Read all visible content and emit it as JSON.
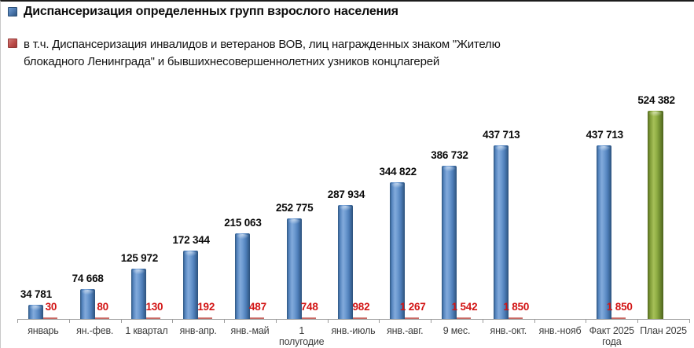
{
  "legend": {
    "series1": {
      "label": "Диспансеризация определенных групп взрослого населения",
      "marker_color": "#4F81BD"
    },
    "series2": {
      "lines": [
        "в т.ч. Диспансеризация инвалидов и ветеранов ВОВ, лиц награжденных знаком \"Жителю",
        "блокадного Ленинграда\" и бывшихнесовершеннолетних  узников концлагерей"
      ],
      "marker_color": "#C0504D"
    }
  },
  "chart_data": {
    "type": "bar",
    "title": "",
    "xlabel": "",
    "ylabel": "",
    "grid": false,
    "legend_position": "top-left",
    "ylim": [
      0,
      560000
    ],
    "categories": [
      "январь",
      "ян.-фев.",
      "1 квартал",
      "янв-апр.",
      "янв.-май",
      "1 полугодие",
      "янв.-июль",
      "янв.-авг.",
      "9 мес.",
      "янв.-окт.",
      "янв.-нояб",
      "Факт 2025 года",
      "План 2025"
    ],
    "series": [
      {
        "name": "Диспансеризация определенных групп взрослого населения",
        "color": "#4F81BD",
        "values": [
          34781,
          74668,
          125972,
          172344,
          215063,
          252775,
          287934,
          344822,
          386732,
          437713,
          null,
          437713,
          524382
        ],
        "labels": [
          "34 781",
          "74 668",
          "125 972",
          "172 344",
          "215 063",
          "252 775",
          "287 934",
          "344 822",
          "386 732",
          "437 713",
          "",
          "437 713",
          "524 382"
        ]
      },
      {
        "name": "в т.ч. Диспансеризация инвалидов и ветеранов ВОВ, лиц награжденных знаком \"Жителю блокадного Ленинграда\" и бывшихнесовершеннолетних  узников концлагерей",
        "color": "#C0504D",
        "label_color": "#D21414",
        "values": [
          30,
          80,
          130,
          192,
          487,
          748,
          982,
          1267,
          1542,
          1850,
          null,
          1850,
          null
        ],
        "labels": [
          "30",
          "80",
          "130",
          "192",
          "487",
          "748",
          "982",
          "1 267",
          "1 542",
          "1 850",
          "",
          "1 850",
          ""
        ]
      }
    ],
    "highlight_bar": {
      "category": "План 2025",
      "index": 12,
      "color": "#77933C"
    }
  }
}
